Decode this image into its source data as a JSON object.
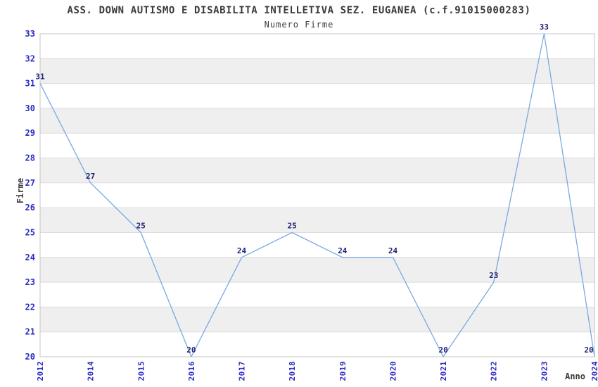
{
  "header": {
    "title": "ASS. DOWN AUTISMO E DISABILITA INTELLETIVA SEZ. EUGANEA (c.f.91015000283)",
    "subtitle": "Numero Firme"
  },
  "chart_data": {
    "type": "line",
    "title": "ASS. DOWN AUTISMO E DISABILITA INTELLETIVA SEZ. EUGANEA (c.f.91015000283)",
    "subtitle": "Numero Firme",
    "xlabel": "Anno",
    "ylabel": "Firme",
    "categories": [
      "2012",
      "2014",
      "2015",
      "2016",
      "2017",
      "2018",
      "2019",
      "2020",
      "2021",
      "2022",
      "2023",
      "2024"
    ],
    "values": [
      31,
      27,
      25,
      20,
      24,
      25,
      24,
      24,
      20,
      23,
      33,
      20
    ],
    "ylim": [
      20,
      33
    ],
    "ytick_step": 1,
    "grid": "horizontal",
    "banded_background": true,
    "legend": "none",
    "colors": {
      "line": "#79a9e2",
      "tick_label": "#2b2bc4",
      "data_label": "#21217a",
      "band_fill": "#efefef",
      "gridline": "#dcdcdc",
      "plot_border": "#c6c6c6",
      "text": "#3a3a3a",
      "background": "#ffffff"
    }
  }
}
